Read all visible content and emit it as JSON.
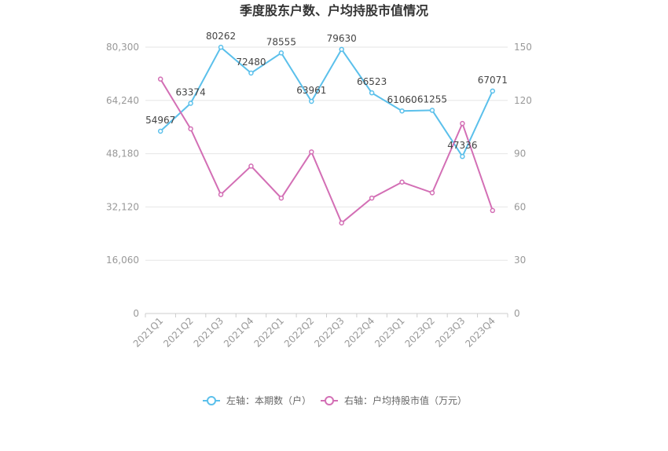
{
  "chart_data": {
    "type": "line",
    "title": "季度股东户数、户均持股市值情况",
    "categories": [
      "2021Q1",
      "2021Q2",
      "2021Q3",
      "2021Q4",
      "2022Q1",
      "2022Q2",
      "2022Q3",
      "2022Q4",
      "2023Q1",
      "2023Q2",
      "2023Q3",
      "2023Q4"
    ],
    "left_axis": {
      "ticks": [
        "0",
        "16,060",
        "32,120",
        "48,180",
        "64,240",
        "80,300"
      ],
      "ylim": [
        0,
        80300
      ]
    },
    "right_axis": {
      "ticks": [
        "0",
        "30",
        "60",
        "90",
        "120",
        "150"
      ],
      "ylim": [
        0,
        150
      ]
    },
    "series": [
      {
        "name": "左轴：本期数（户）",
        "axis": "left",
        "color": "#5bc0eb",
        "values": [
          54967,
          63374,
          80262,
          72480,
          78555,
          63961,
          79630,
          66523,
          61060,
          61255,
          47336,
          67071
        ],
        "labels": [
          "54967",
          "63374",
          "80262",
          "72480",
          "78555",
          "63961",
          "79630",
          "66523",
          "61060",
          "61255",
          "47336",
          "67071"
        ]
      },
      {
        "name": "右轴：户均持股市值（万元）",
        "axis": "right",
        "color": "#d36fb5",
        "values": [
          132,
          104,
          67,
          83,
          65,
          91,
          51,
          65,
          74,
          68,
          107,
          58
        ]
      }
    ],
    "grid": true,
    "legend_position": "bottom"
  }
}
